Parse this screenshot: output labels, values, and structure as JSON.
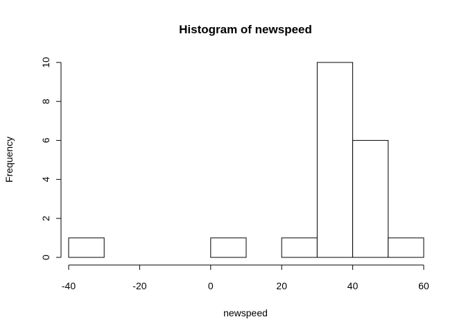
{
  "chart_data": {
    "type": "bar",
    "title": "Histogram of newspeed",
    "xlabel": "newspeed",
    "ylabel": "Frequency",
    "bins": [
      {
        "start": -40,
        "end": -30,
        "count": 1
      },
      {
        "start": -30,
        "end": -20,
        "count": 0
      },
      {
        "start": -20,
        "end": -10,
        "count": 0
      },
      {
        "start": -10,
        "end": 0,
        "count": 0
      },
      {
        "start": 0,
        "end": 10,
        "count": 1
      },
      {
        "start": 10,
        "end": 20,
        "count": 0
      },
      {
        "start": 20,
        "end": 30,
        "count": 1
      },
      {
        "start": 30,
        "end": 40,
        "count": 10
      },
      {
        "start": 40,
        "end": 50,
        "count": 6
      },
      {
        "start": 50,
        "end": 60,
        "count": 1
      }
    ],
    "xlim": [
      -40,
      60
    ],
    "ylim": [
      0,
      10
    ],
    "x_ticks": [
      "-40",
      "-20",
      "0",
      "20",
      "40",
      "60"
    ],
    "y_ticks": [
      "0",
      "2",
      "4",
      "6",
      "8",
      "10"
    ],
    "grid": false,
    "legend": "none"
  }
}
